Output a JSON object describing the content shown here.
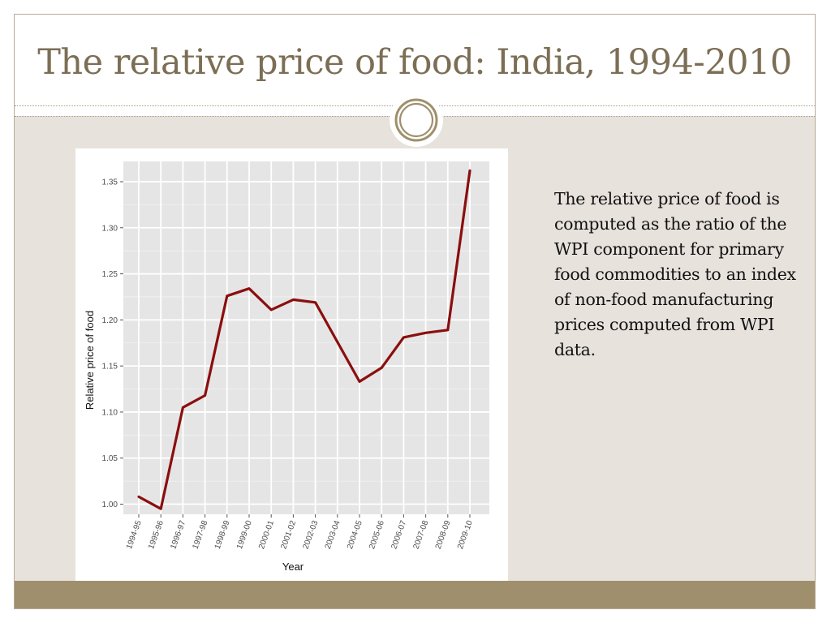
{
  "slide": {
    "title": "The relative price of food: India, 1994-2010",
    "caption": "The relative price of food is computed as the ratio of the WPI component for primary food commodities to an index of non-food manufacturing prices computed from WPI data.",
    "colors": {
      "title": "#7c6e55",
      "content_bg": "#e7e2dc",
      "footer_band": "#a08f6c",
      "line": "#8b0e0e"
    }
  },
  "chart_data": {
    "type": "line",
    "title": "",
    "xlabel": "Year",
    "ylabel": "Relative price of food",
    "categories": [
      "1994-95",
      "1995-96",
      "1996-97",
      "1997-98",
      "1998-99",
      "1999-00",
      "2000-01",
      "2001-02",
      "2002-03",
      "2003-04",
      "2004-05",
      "2005-06",
      "2006-07",
      "2007-08",
      "2008-09",
      "2009-10"
    ],
    "values": [
      1.008,
      0.995,
      1.105,
      1.118,
      1.226,
      1.234,
      1.211,
      1.222,
      1.219,
      1.176,
      1.133,
      1.148,
      1.181,
      1.186,
      1.189,
      1.362
    ],
    "y_ticks": [
      "1.00",
      "1.05",
      "1.10",
      "1.15",
      "1.20",
      "1.25",
      "1.30",
      "1.35"
    ],
    "ylim": [
      0.989,
      1.372
    ],
    "grid": true,
    "legend": "none"
  }
}
